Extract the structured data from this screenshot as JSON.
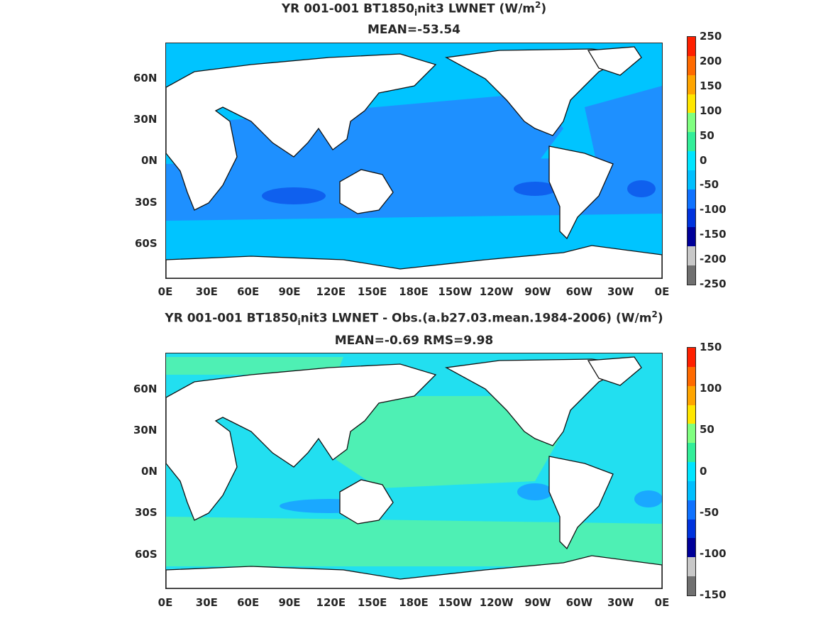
{
  "panel1": {
    "title_pre": "YR 001-001 BT1850",
    "title_sub": "i",
    "title_post": "nit3  LWNET (W/m",
    "title_sup": "2",
    "title_end": ")",
    "subtitle": "MEAN=-53.54",
    "colorbar_ticks": [
      "250",
      "200",
      "150",
      "100",
      "50",
      "0",
      "-50",
      "-100",
      "-150",
      "-200",
      "-250"
    ],
    "colorbar_colors": [
      "#ff2000",
      "#ff6a00",
      "#ffa500",
      "#ffe600",
      "#80ff80",
      "#33ee99",
      "#00e5ff",
      "#00bfff",
      "#0f72ff",
      "#0033dd",
      "#000099",
      "#c8c8c8",
      "#707070"
    ]
  },
  "panel2": {
    "title_pre": "YR 001-001 BT1850",
    "title_sub": "i",
    "title_post": "nit3 LWNET - Obs.(a.b27.03.mean.1984-2006) (W/m",
    "title_sup": "2",
    "title_end": ")",
    "subtitle": "MEAN=-0.69 RMS=9.98",
    "colorbar_ticks": [
      "150",
      "100",
      "50",
      "0",
      "-50",
      "-100",
      "-150"
    ],
    "colorbar_colors": [
      "#ff2000",
      "#ff6a00",
      "#ffa500",
      "#ffe600",
      "#80ff80",
      "#33ee99",
      "#00e5ff",
      "#00bfff",
      "#0f72ff",
      "#0033dd",
      "#000099",
      "#c8c8c8",
      "#707070"
    ]
  },
  "axes": {
    "lon_ticks": [
      "0E",
      "30E",
      "60E",
      "90E",
      "120E",
      "150E",
      "180E",
      "150W",
      "120W",
      "90W",
      "60W",
      "30W",
      "0E"
    ],
    "lat_ticks": [
      "60N",
      "30N",
      "0N",
      "30S",
      "60S"
    ]
  },
  "colors": {
    "map1_ocean": "#00c4ff",
    "map1_band": "#1e90ff",
    "map1_deep": "#0f60ee",
    "map2_ocean": "#22dff0",
    "map2_green": "#4ef0b4",
    "map2_blue": "#1aa8ff",
    "land": "#ffffff"
  }
}
